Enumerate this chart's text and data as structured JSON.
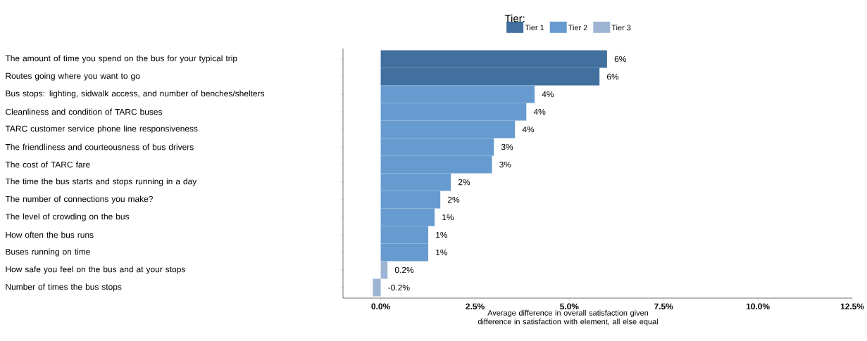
{
  "chart_data": {
    "type": "bar",
    "orientation": "horizontal",
    "categories": [
      "The amount of time you spend on the bus for your typical trip",
      "Routes going where you want to go",
      "Bus stops: lighting, sidwalk access, and number of benches/shelters",
      "Cleanliness and condition of TARC buses",
      "TARC customer service phone line responsiveness",
      "The friendliness and courteousness of bus drivers",
      "The cost of TARC fare",
      "The time the bus starts and stops running in a day",
      "The number of connections you make?",
      "The level of crowding on the bus",
      "How often the bus runs",
      "Buses running on time",
      "How safe you feel on the bus and at your stops",
      "Number of times the bus stops"
    ],
    "series": [
      {
        "name": "Tier 1",
        "color": "#41709f",
        "values": [
          6.0,
          5.8,
          null,
          null,
          null,
          null,
          null,
          null,
          null,
          null,
          null,
          null,
          null,
          null
        ],
        "value_labels": [
          "6%",
          "6%",
          null,
          null,
          null,
          null,
          null,
          null,
          null,
          null,
          null,
          null,
          null,
          null
        ]
      },
      {
        "name": "Tier 2",
        "color": "#679bd0",
        "values": [
          null,
          null,
          4.08,
          3.86,
          3.56,
          3.0,
          2.95,
          1.86,
          1.58,
          1.43,
          1.26,
          1.26,
          null,
          null
        ],
        "value_labels": [
          null,
          null,
          "4%",
          "4%",
          "4%",
          "3%",
          "3%",
          "2%",
          "2%",
          "1%",
          "1%",
          "1%",
          null,
          null
        ]
      },
      {
        "name": "Tier 3",
        "color": "#9db5d3",
        "values": [
          null,
          null,
          null,
          null,
          null,
          null,
          null,
          null,
          null,
          null,
          null,
          null,
          0.18,
          -0.21
        ],
        "value_labels": [
          null,
          null,
          null,
          null,
          null,
          null,
          null,
          null,
          null,
          null,
          null,
          null,
          "0.2%",
          "-0.2%"
        ]
      }
    ],
    "xlim": [
      -1,
      12.5
    ],
    "xticks": [
      {
        "value": 0,
        "label": "0.0%"
      },
      {
        "value": 2.5,
        "label": "2.5%"
      },
      {
        "value": 5,
        "label": "5.0%"
      },
      {
        "value": 7.5,
        "label": "7.5%"
      },
      {
        "value": 10,
        "label": "10.0%"
      },
      {
        "value": 12.5,
        "label": "12.5%"
      }
    ],
    "xlabel": "Average difference in overall satisfaction given difference in satisfaction with element, all else equal",
    "legend_title": "Tier:",
    "legend": "top",
    "grid": false
  }
}
